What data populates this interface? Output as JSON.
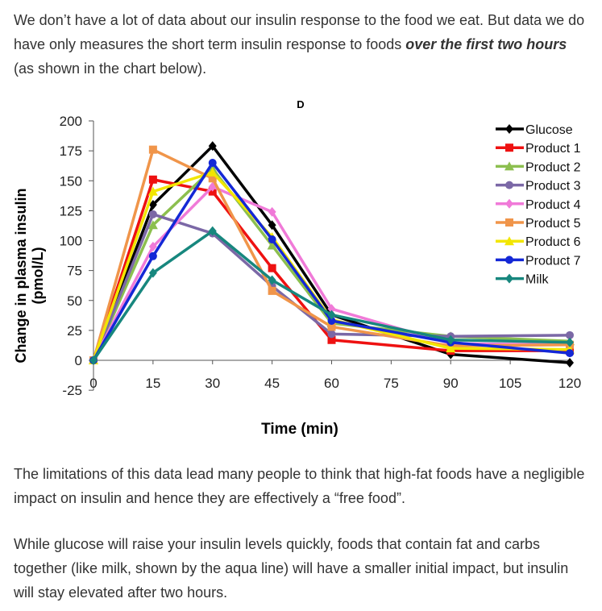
{
  "article": {
    "p1_before": "We don’t have a lot of data about our insulin response to the food we eat.  But data we do have only measures the short term insulin response to foods ",
    "p1_emphasis": "over the first two hours",
    "p1_after": " (as shown in the chart below).",
    "p2": "The limitations of this data lead many people to think that high-fat foods have a negligible impact on insulin and hence they are effectively a “free food”.",
    "p3": "While glucose will raise your insulin levels quickly, foods that contain fat and carbs together (like milk, shown by the aqua line) will have a smaller initial impact, but insulin will stay elevated after two hours."
  },
  "chart_data": {
    "type": "line",
    "panel_letter": "D",
    "title": "",
    "xlabel": "Time (min)",
    "ylabel_line1": "Change in plasma insulin",
    "ylabel_line2": "(pmol/L)",
    "x": [
      0,
      15,
      30,
      45,
      60,
      90,
      120
    ],
    "xticks": [
      0,
      15,
      30,
      45,
      60,
      75,
      90,
      105,
      120
    ],
    "yticks": [
      -25,
      0,
      25,
      50,
      75,
      100,
      125,
      150,
      175,
      200
    ],
    "xlim": [
      0,
      120
    ],
    "ylim": [
      -25,
      200
    ],
    "grid": false,
    "legend_position": "top-right",
    "series": [
      {
        "name": "Glucose",
        "color": "#000000",
        "marker": "diamond",
        "values": [
          0,
          130,
          179,
          113,
          38,
          5,
          -2
        ]
      },
      {
        "name": "Product 1",
        "color": "#ee1111",
        "marker": "square",
        "values": [
          0,
          151,
          141,
          77,
          17,
          8,
          8
        ]
      },
      {
        "name": "Product 2",
        "color": "#8cbf4f",
        "marker": "triangle",
        "values": [
          0,
          113,
          160,
          96,
          31,
          20,
          16
        ]
      },
      {
        "name": "Product 3",
        "color": "#7b68a6",
        "marker": "circle",
        "values": [
          0,
          122,
          106,
          62,
          22,
          20,
          21
        ]
      },
      {
        "name": "Product 4",
        "color": "#f07ad8",
        "marker": "diamond",
        "values": [
          0,
          95,
          145,
          124,
          43,
          14,
          13
        ]
      },
      {
        "name": "Product 5",
        "color": "#f0954a",
        "marker": "square",
        "values": [
          0,
          176,
          152,
          58,
          28,
          12,
          13
        ]
      },
      {
        "name": "Product 6",
        "color": "#f2e600",
        "marker": "triangle",
        "values": [
          0,
          141,
          157,
          103,
          34,
          10,
          9
        ]
      },
      {
        "name": "Product 7",
        "color": "#1428d6",
        "marker": "circle",
        "values": [
          0,
          87,
          165,
          101,
          33,
          15,
          6
        ]
      },
      {
        "name": "Milk",
        "color": "#17877e",
        "marker": "diamond",
        "values": [
          0,
          73,
          108,
          67,
          38,
          17,
          15
        ]
      }
    ]
  }
}
